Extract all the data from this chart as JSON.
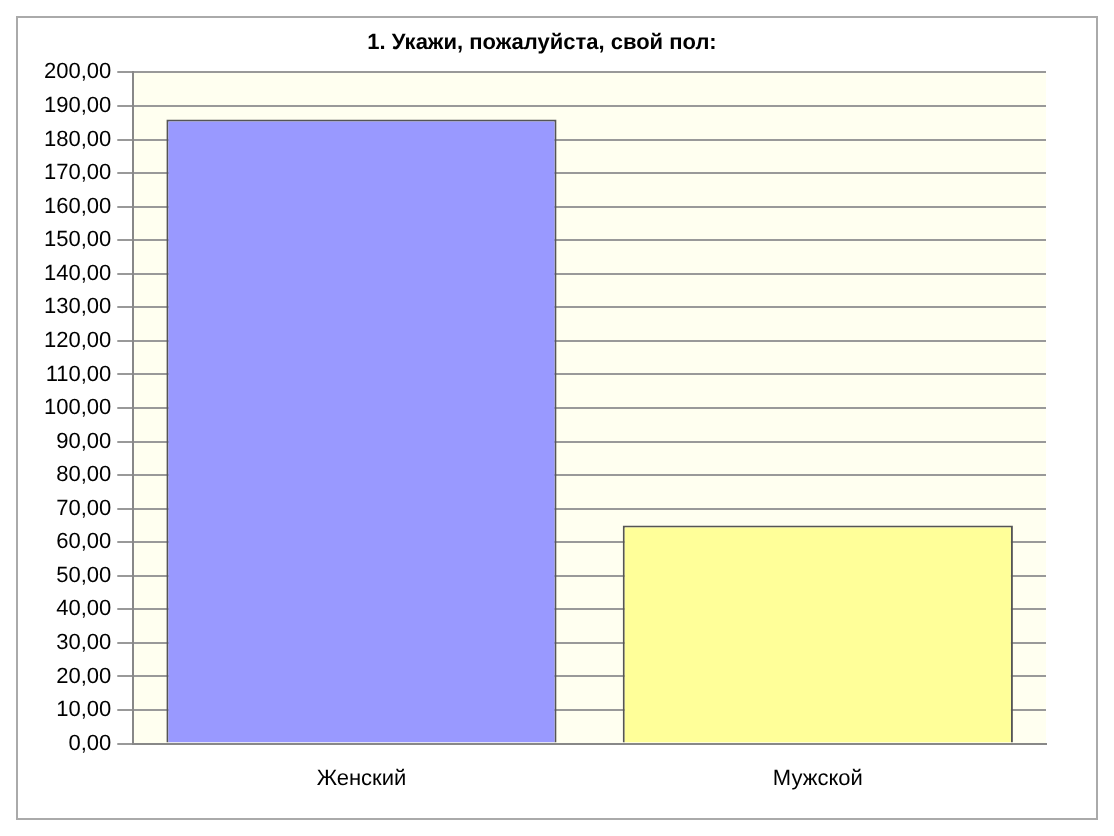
{
  "chart_data": {
    "type": "bar",
    "title": "1. Укажи, пожалуйста, свой пол:",
    "categories": [
      "Женский",
      "Мужской"
    ],
    "values": [
      186,
      65
    ],
    "colors": [
      "#9999ff",
      "#ffff99"
    ],
    "ylim": [
      0,
      200
    ],
    "yticks": [
      {
        "value": 0,
        "label": "0,00"
      },
      {
        "value": 10,
        "label": "10,00"
      },
      {
        "value": 20,
        "label": "20,00"
      },
      {
        "value": 30,
        "label": "30,00"
      },
      {
        "value": 40,
        "label": "40,00"
      },
      {
        "value": 50,
        "label": "50,00"
      },
      {
        "value": 60,
        "label": "60,00"
      },
      {
        "value": 70,
        "label": "70,00"
      },
      {
        "value": 80,
        "label": "80,00"
      },
      {
        "value": 90,
        "label": "90,00"
      },
      {
        "value": 100,
        "label": "100,00"
      },
      {
        "value": 110,
        "label": "110,00"
      },
      {
        "value": 120,
        "label": "120,00"
      },
      {
        "value": 130,
        "label": "130,00"
      },
      {
        "value": 140,
        "label": "140,00"
      },
      {
        "value": 150,
        "label": "150,00"
      },
      {
        "value": 160,
        "label": "160,00"
      },
      {
        "value": 170,
        "label": "170,00"
      },
      {
        "value": 180,
        "label": "180,00"
      },
      {
        "value": 190,
        "label": "190,00"
      },
      {
        "value": 200,
        "label": "200,00"
      }
    ],
    "grid": "y"
  }
}
